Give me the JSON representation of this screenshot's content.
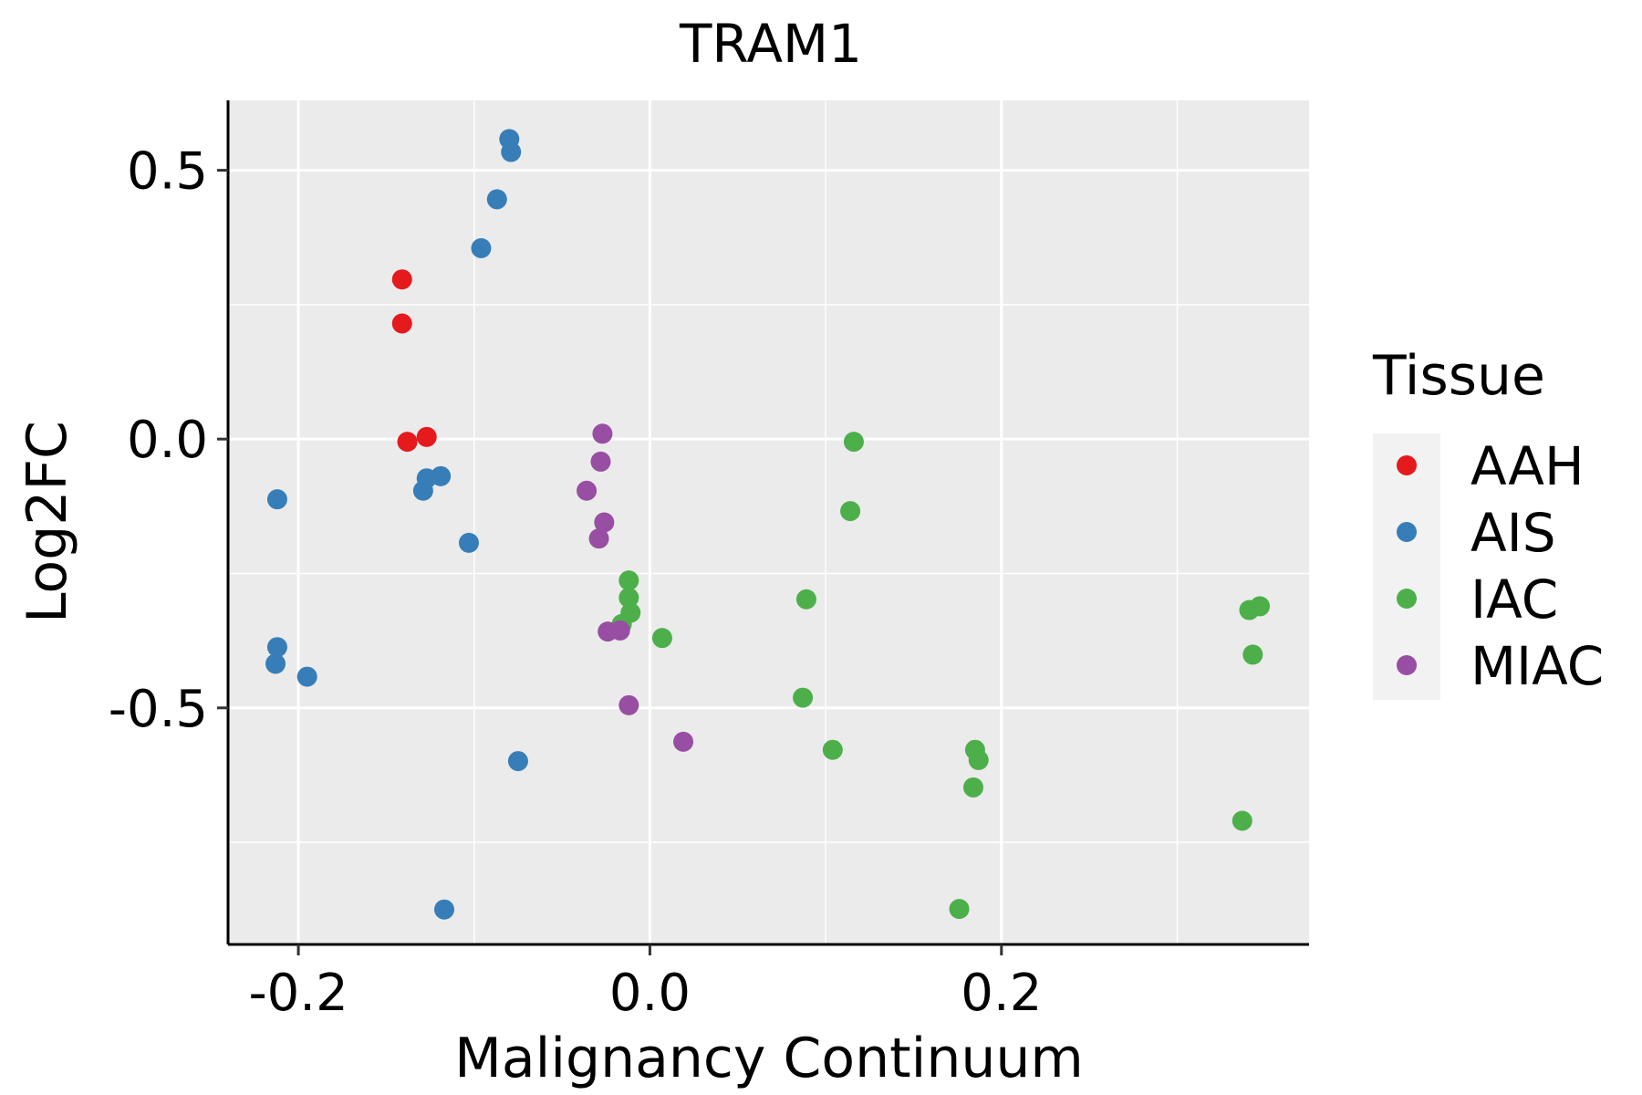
{
  "chart_data": {
    "type": "scatter",
    "title": "TRAM1",
    "xlabel": "Malignancy Continuum",
    "ylabel": "Log2FC",
    "xlim": [
      -0.24,
      0.375
    ],
    "ylim": [
      -0.94,
      0.63
    ],
    "x_ticks": [
      {
        "value": -0.2,
        "label": "-0.2"
      },
      {
        "value": 0.0,
        "label": "0.0"
      },
      {
        "value": 0.2,
        "label": "0.2"
      }
    ],
    "x_minor": [
      -0.1,
      0.1,
      0.3
    ],
    "y_ticks": [
      {
        "value": 0.5,
        "label": "0.5"
      },
      {
        "value": 0.0,
        "label": "0.0"
      },
      {
        "value": -0.5,
        "label": "-0.5"
      }
    ],
    "y_minor": [
      0.25,
      -0.25,
      -0.75
    ],
    "grid": true,
    "legend": {
      "title": "Tissue",
      "placement": "right"
    },
    "series": [
      {
        "name": "AAH",
        "color": "#E41A1C",
        "points": [
          {
            "x": -0.141,
            "y": 0.297
          },
          {
            "x": -0.141,
            "y": 0.215
          },
          {
            "x": -0.138,
            "y": -0.005
          },
          {
            "x": -0.127,
            "y": 0.004
          }
        ]
      },
      {
        "name": "AIS",
        "color": "#377EB8",
        "points": [
          {
            "x": -0.08,
            "y": 0.558
          },
          {
            "x": -0.079,
            "y": 0.534
          },
          {
            "x": -0.087,
            "y": 0.446
          },
          {
            "x": -0.096,
            "y": 0.355
          },
          {
            "x": -0.212,
            "y": -0.112
          },
          {
            "x": -0.127,
            "y": -0.073
          },
          {
            "x": -0.119,
            "y": -0.069
          },
          {
            "x": -0.129,
            "y": -0.096
          },
          {
            "x": -0.103,
            "y": -0.193
          },
          {
            "x": -0.212,
            "y": -0.387
          },
          {
            "x": -0.213,
            "y": -0.418
          },
          {
            "x": -0.195,
            "y": -0.442
          },
          {
            "x": -0.075,
            "y": -0.599
          },
          {
            "x": -0.117,
            "y": -0.875
          }
        ]
      },
      {
        "name": "IAC",
        "color": "#4DAF4A",
        "points": [
          {
            "x": 0.116,
            "y": -0.005
          },
          {
            "x": 0.114,
            "y": -0.134
          },
          {
            "x": -0.012,
            "y": -0.263
          },
          {
            "x": -0.012,
            "y": -0.295
          },
          {
            "x": -0.011,
            "y": -0.323
          },
          {
            "x": -0.016,
            "y": -0.344
          },
          {
            "x": 0.007,
            "y": -0.37
          },
          {
            "x": 0.089,
            "y": -0.298
          },
          {
            "x": 0.087,
            "y": -0.481
          },
          {
            "x": 0.104,
            "y": -0.578
          },
          {
            "x": 0.185,
            "y": -0.578
          },
          {
            "x": 0.187,
            "y": -0.597
          },
          {
            "x": 0.184,
            "y": -0.648
          },
          {
            "x": 0.176,
            "y": -0.874
          },
          {
            "x": 0.341,
            "y": -0.318
          },
          {
            "x": 0.347,
            "y": -0.311
          },
          {
            "x": 0.343,
            "y": -0.401
          },
          {
            "x": 0.337,
            "y": -0.71
          }
        ]
      },
      {
        "name": "MIAC",
        "color": "#984EA3",
        "points": [
          {
            "x": -0.027,
            "y": 0.01
          },
          {
            "x": -0.028,
            "y": -0.042
          },
          {
            "x": -0.036,
            "y": -0.096
          },
          {
            "x": -0.026,
            "y": -0.155
          },
          {
            "x": -0.029,
            "y": -0.185
          },
          {
            "x": -0.024,
            "y": -0.358
          },
          {
            "x": -0.017,
            "y": -0.356
          },
          {
            "x": -0.012,
            "y": -0.495
          },
          {
            "x": 0.019,
            "y": -0.563
          }
        ]
      }
    ]
  }
}
